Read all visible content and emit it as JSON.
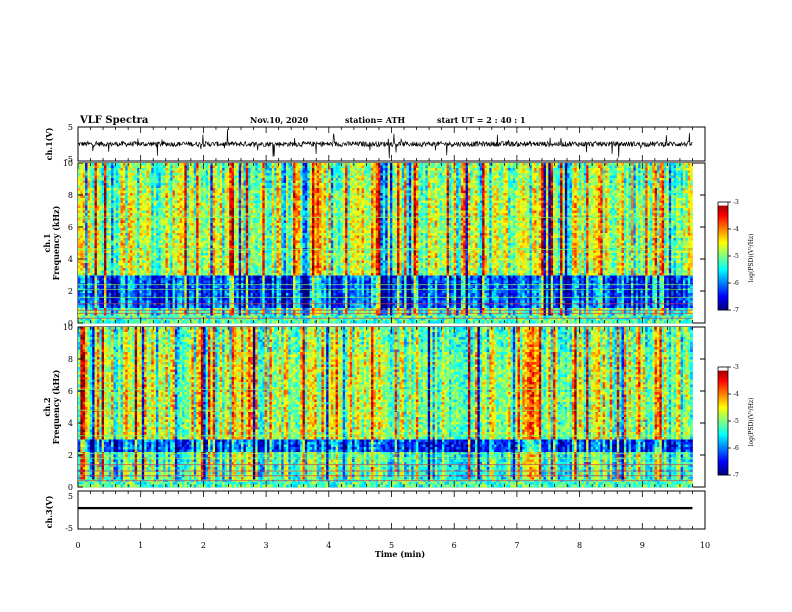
{
  "header": {
    "title": "VLF Spectra",
    "date": "Nov.10, 2020",
    "station": "station= ATH",
    "start": "start  UT  =   2  : 40 : 1"
  },
  "chart_data": [
    {
      "type": "line",
      "panel": "ch1-waveform",
      "ylabel": "ch.1(V)",
      "ylim": [
        -5,
        5
      ],
      "yticks": [
        "5",
        "-5"
      ],
      "xlim": [
        0,
        10
      ],
      "description_values": {
        "mean": 0,
        "noise_amplitude_V": 1.5
      }
    },
    {
      "type": "heatmap",
      "panel": "ch1-spectrogram",
      "ylabel_top": "ch.1",
      "ylabel": "Frequency  (kHz)",
      "ylim": [
        0,
        10
      ],
      "yticks": [
        "0",
        "2",
        "4",
        "6",
        "8",
        "10"
      ],
      "xlim": [
        0,
        9.8
      ],
      "colorbar": {
        "label": "log(PSD)(V²/Hz)",
        "range": [
          -7,
          -3
        ],
        "ticks": [
          "-3",
          "-4",
          "-5",
          "-6",
          "-7"
        ]
      },
      "low_band_kHz": [
        1.0,
        3.0
      ],
      "line_features_kHz": [
        0.3,
        0.6,
        0.8,
        1.2,
        1.6,
        2.1,
        2.4,
        4.6,
        6.6
      ]
    },
    {
      "type": "heatmap",
      "panel": "ch2-spectrogram",
      "ylabel_top": "ch.2",
      "ylabel": "Frequency  (kHz)",
      "ylim": [
        0,
        10
      ],
      "yticks": [
        "0",
        "2",
        "4",
        "6",
        "8",
        "10"
      ],
      "xlim": [
        0,
        9.8
      ],
      "colorbar": {
        "label": "log(PSD)(V²/Hz)",
        "range": [
          -7,
          -3
        ],
        "ticks": [
          "-3",
          "-4",
          "-5",
          "-6",
          "-7"
        ]
      },
      "low_band_kHz": [
        2.2,
        3.0
      ],
      "line_features_kHz": [
        0.4,
        0.7,
        1.0,
        1.4,
        1.8,
        2.1,
        3.2,
        4.8,
        6.1
      ]
    },
    {
      "type": "line",
      "panel": "ch3-waveform",
      "ylabel": "ch.3(V)",
      "ylim": [
        -5,
        5
      ],
      "yticks": [
        "5",
        "-5"
      ],
      "xlim": [
        0,
        10
      ],
      "description_values": {
        "mean": 0.5,
        "noise_amplitude_V": 0.3
      }
    }
  ],
  "xaxis": {
    "label": "Time  (min)",
    "ticks": [
      "0",
      "1",
      "2",
      "3",
      "4",
      "5",
      "6",
      "7",
      "8",
      "9",
      "10"
    ]
  }
}
